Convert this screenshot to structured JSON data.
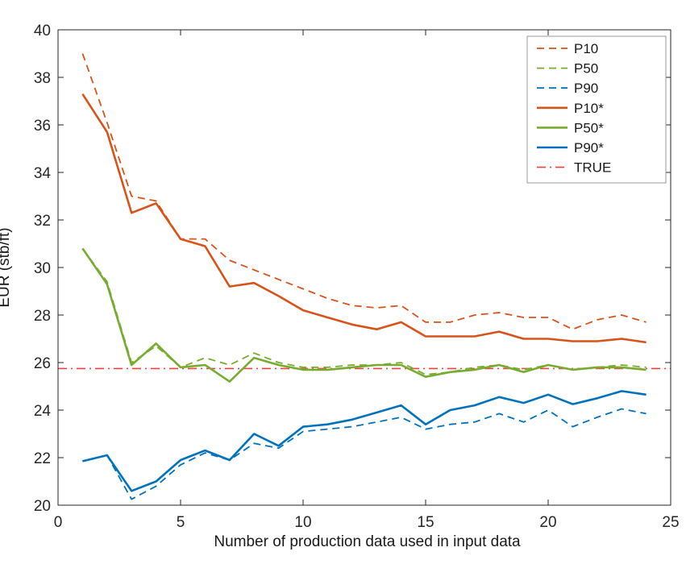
{
  "figure": {
    "xlabel": "Number of production data used in input data",
    "ylabel": "EUR (stb/ft)"
  },
  "chart_data": {
    "type": "line",
    "title": "",
    "xlabel": "Number of production data used in input data",
    "ylabel": "EUR (stb/ft)",
    "xlim": [
      0,
      25
    ],
    "ylim": [
      20,
      40
    ],
    "xticks": [
      0,
      5,
      10,
      15,
      20,
      25
    ],
    "yticks": [
      20,
      22,
      24,
      26,
      28,
      30,
      32,
      34,
      36,
      38,
      40
    ],
    "grid": false,
    "legend_position": "top-right",
    "x": [
      1,
      2,
      3,
      4,
      5,
      6,
      7,
      8,
      9,
      10,
      11,
      12,
      13,
      14,
      15,
      16,
      17,
      18,
      19,
      20,
      21,
      22,
      23,
      24
    ],
    "series": [
      {
        "name": "P10",
        "color": "#d95319",
        "style": "dashed",
        "values": [
          39.0,
          36.1,
          33.0,
          32.8,
          31.2,
          31.2,
          30.3,
          29.9,
          29.5,
          29.1,
          28.7,
          28.4,
          28.3,
          28.4,
          27.7,
          27.7,
          28.0,
          28.1,
          27.9,
          27.9,
          27.4,
          27.8,
          28.0,
          27.7
        ]
      },
      {
        "name": "P50",
        "color": "#77ac30",
        "style": "dashed",
        "values": [
          30.8,
          29.4,
          26.0,
          26.7,
          25.8,
          26.2,
          25.9,
          26.4,
          26.0,
          25.8,
          25.8,
          25.9,
          25.9,
          26.0,
          25.5,
          25.6,
          25.8,
          25.9,
          25.7,
          25.9,
          25.7,
          25.8,
          25.9,
          25.8
        ]
      },
      {
        "name": "P90",
        "color": "#0072bd",
        "style": "dashed",
        "values": [
          21.85,
          22.1,
          20.25,
          20.8,
          21.7,
          22.2,
          21.9,
          22.6,
          22.4,
          23.1,
          23.2,
          23.3,
          23.5,
          23.7,
          23.2,
          23.4,
          23.5,
          23.85,
          23.5,
          24.0,
          23.3,
          23.7,
          24.05,
          23.85
        ]
      },
      {
        "name": "P10*",
        "color": "#d95319",
        "style": "solid",
        "values": [
          37.3,
          35.7,
          32.3,
          32.7,
          31.2,
          30.9,
          29.2,
          29.35,
          28.8,
          28.2,
          27.9,
          27.6,
          27.4,
          27.7,
          27.1,
          27.1,
          27.1,
          27.3,
          27.0,
          27.0,
          26.9,
          26.9,
          27.0,
          26.85
        ]
      },
      {
        "name": "P50*",
        "color": "#77ac30",
        "style": "solid",
        "values": [
          30.8,
          29.3,
          25.9,
          26.8,
          25.8,
          25.9,
          25.2,
          26.2,
          25.9,
          25.7,
          25.7,
          25.8,
          25.9,
          25.9,
          25.4,
          25.6,
          25.7,
          25.9,
          25.6,
          25.9,
          25.7,
          25.8,
          25.8,
          25.7
        ]
      },
      {
        "name": "P90*",
        "color": "#0072bd",
        "style": "solid",
        "values": [
          21.85,
          22.1,
          20.6,
          21.0,
          21.9,
          22.3,
          21.9,
          23.0,
          22.5,
          23.3,
          23.4,
          23.6,
          23.9,
          24.2,
          23.4,
          24.0,
          24.2,
          24.55,
          24.3,
          24.65,
          24.25,
          24.5,
          24.8,
          24.65
        ]
      },
      {
        "name": "TRUE",
        "color": "#f3413c",
        "style": "dashdot",
        "constant": 25.75
      }
    ],
    "style_hints": {
      "axis_color": "#262626",
      "tick_label_color": "#262626",
      "legend_border_color": "#999999",
      "tick_font_size": 19,
      "legend_font_size": 17
    }
  }
}
